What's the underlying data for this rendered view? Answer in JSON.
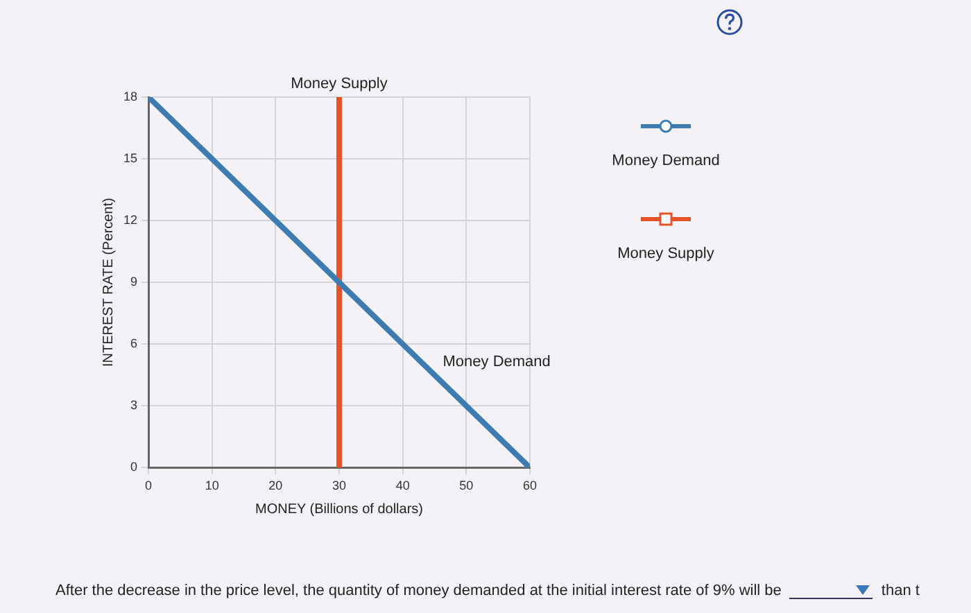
{
  "chart_data": {
    "type": "line",
    "xlabel": "MONEY (Billions of dollars)",
    "ylabel": "INTEREST RATE (Percent)",
    "series": [
      {
        "name": "Money Demand",
        "color": "#3d7cb3",
        "x": [
          0,
          60
        ],
        "values": [
          18,
          0
        ]
      },
      {
        "name": "Money Supply",
        "color": "#e5532b",
        "x": [
          30,
          30
        ],
        "values": [
          0,
          18
        ]
      }
    ],
    "xlim": [
      0,
      60
    ],
    "xticks": [
      0,
      10,
      20,
      30,
      40,
      50,
      60
    ],
    "ylim": [
      0,
      18
    ],
    "yticks": [
      0,
      3,
      6,
      9,
      12,
      15,
      18
    ],
    "grid": true,
    "legend": "right",
    "annotations": [
      "After the decrease in the price level, the quantity of money demanded at the initial interest rate of 9% will be",
      "than t"
    ]
  }
}
